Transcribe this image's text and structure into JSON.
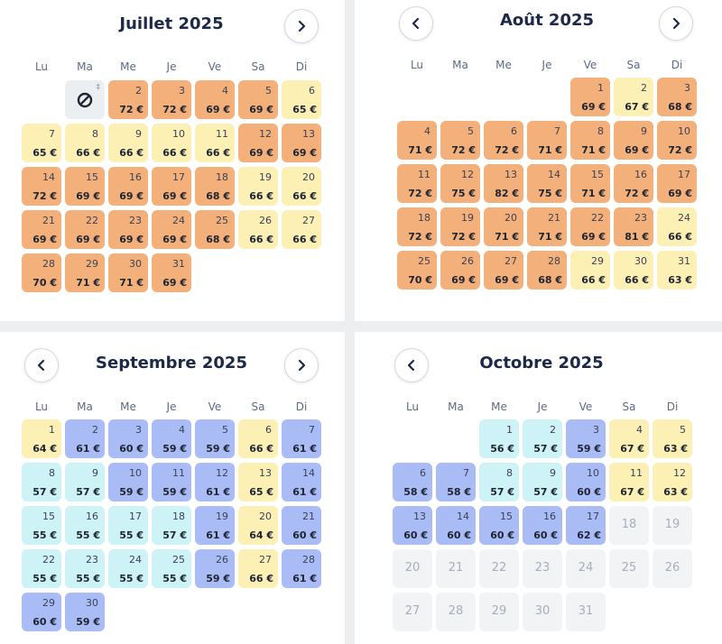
{
  "weekdays": [
    "Lu",
    "Ma",
    "Me",
    "Je",
    "Ve",
    "Sa",
    "Di"
  ],
  "colors": {
    "high": "#f3b07a",
    "mid": "#fdf0b5",
    "low": "#a9bcf6",
    "lowest": "#cdf3f7",
    "unavailable": "#f1f3f5"
  },
  "months": [
    {
      "title": "Juillet 2025",
      "nav": [
        "chevron-right-icon"
      ],
      "unavailable_mark": "‡",
      "days": [
        {
          "day": "2",
          "price": "72 €",
          "level": "high"
        },
        {
          "day": "3",
          "price": "72 €",
          "level": "high"
        },
        {
          "day": "4",
          "price": "69 €",
          "level": "high"
        },
        {
          "day": "5",
          "price": "69 €",
          "level": "high"
        },
        {
          "day": "6",
          "price": "65 €",
          "level": "mid"
        },
        {
          "day": "7",
          "price": "65 €",
          "level": "mid"
        },
        {
          "day": "8",
          "price": "66 €",
          "level": "mid"
        },
        {
          "day": "9",
          "price": "66 €",
          "level": "mid"
        },
        {
          "day": "10",
          "price": "66 €",
          "level": "mid"
        },
        {
          "day": "11",
          "price": "66 €",
          "level": "mid"
        },
        {
          "day": "12",
          "price": "69 €",
          "level": "high"
        },
        {
          "day": "13",
          "price": "69 €",
          "level": "high"
        },
        {
          "day": "14",
          "price": "72 €",
          "level": "high"
        },
        {
          "day": "15",
          "price": "69 €",
          "level": "high"
        },
        {
          "day": "16",
          "price": "69 €",
          "level": "high"
        },
        {
          "day": "17",
          "price": "69 €",
          "level": "high"
        },
        {
          "day": "18",
          "price": "68 €",
          "level": "high"
        },
        {
          "day": "19",
          "price": "66 €",
          "level": "mid"
        },
        {
          "day": "20",
          "price": "66 €",
          "level": "mid"
        },
        {
          "day": "21",
          "price": "69 €",
          "level": "high"
        },
        {
          "day": "22",
          "price": "69 €",
          "level": "high"
        },
        {
          "day": "23",
          "price": "69 €",
          "level": "high"
        },
        {
          "day": "24",
          "price": "69 €",
          "level": "high"
        },
        {
          "day": "25",
          "price": "68 €",
          "level": "high"
        },
        {
          "day": "26",
          "price": "66 €",
          "level": "mid"
        },
        {
          "day": "27",
          "price": "66 €",
          "level": "mid"
        },
        {
          "day": "28",
          "price": "70 €",
          "level": "high"
        },
        {
          "day": "29",
          "price": "71 €",
          "level": "high"
        },
        {
          "day": "30",
          "price": "71 €",
          "level": "high"
        },
        {
          "day": "31",
          "price": "69 €",
          "level": "high"
        }
      ]
    },
    {
      "title": "Août 2025",
      "nav": [
        "chevron-left-icon",
        "chevron-right-icon"
      ],
      "days": [
        {
          "day": "1",
          "price": "69 €",
          "level": "high"
        },
        {
          "day": "2",
          "price": "67 €",
          "level": "mid"
        },
        {
          "day": "3",
          "price": "68 €",
          "level": "high"
        },
        {
          "day": "4",
          "price": "71 €",
          "level": "high"
        },
        {
          "day": "5",
          "price": "72 €",
          "level": "high"
        },
        {
          "day": "6",
          "price": "72 €",
          "level": "high"
        },
        {
          "day": "7",
          "price": "71 €",
          "level": "high"
        },
        {
          "day": "8",
          "price": "71 €",
          "level": "high"
        },
        {
          "day": "9",
          "price": "69 €",
          "level": "high"
        },
        {
          "day": "10",
          "price": "72 €",
          "level": "high"
        },
        {
          "day": "11",
          "price": "72 €",
          "level": "high"
        },
        {
          "day": "12",
          "price": "75 €",
          "level": "high"
        },
        {
          "day": "13",
          "price": "82 €",
          "level": "high"
        },
        {
          "day": "14",
          "price": "75 €",
          "level": "high"
        },
        {
          "day": "15",
          "price": "71 €",
          "level": "high"
        },
        {
          "day": "16",
          "price": "72 €",
          "level": "high"
        },
        {
          "day": "17",
          "price": "69 €",
          "level": "high"
        },
        {
          "day": "18",
          "price": "72 €",
          "level": "high"
        },
        {
          "day": "19",
          "price": "72 €",
          "level": "high"
        },
        {
          "day": "20",
          "price": "71 €",
          "level": "high"
        },
        {
          "day": "21",
          "price": "71 €",
          "level": "high"
        },
        {
          "day": "22",
          "price": "69 €",
          "level": "high"
        },
        {
          "day": "23",
          "price": "81 €",
          "level": "high"
        },
        {
          "day": "24",
          "price": "66 €",
          "level": "mid"
        },
        {
          "day": "25",
          "price": "70 €",
          "level": "high"
        },
        {
          "day": "26",
          "price": "69 €",
          "level": "high"
        },
        {
          "day": "27",
          "price": "69 €",
          "level": "high"
        },
        {
          "day": "28",
          "price": "68 €",
          "level": "high"
        },
        {
          "day": "29",
          "price": "66 €",
          "level": "mid"
        },
        {
          "day": "30",
          "price": "66 €",
          "level": "mid"
        },
        {
          "day": "31",
          "price": "63 €",
          "level": "mid"
        }
      ]
    },
    {
      "title": "Septembre 2025",
      "nav": [
        "chevron-left-icon",
        "chevron-right-icon"
      ],
      "days": [
        {
          "day": "1",
          "price": "64 €",
          "level": "mid"
        },
        {
          "day": "2",
          "price": "61 €",
          "level": "low"
        },
        {
          "day": "3",
          "price": "60 €",
          "level": "low"
        },
        {
          "day": "4",
          "price": "59 €",
          "level": "low"
        },
        {
          "day": "5",
          "price": "59 €",
          "level": "low"
        },
        {
          "day": "6",
          "price": "66 €",
          "level": "mid"
        },
        {
          "day": "7",
          "price": "61 €",
          "level": "low"
        },
        {
          "day": "8",
          "price": "57 €",
          "level": "lowest"
        },
        {
          "day": "9",
          "price": "57 €",
          "level": "lowest"
        },
        {
          "day": "10",
          "price": "59 €",
          "level": "low"
        },
        {
          "day": "11",
          "price": "59 €",
          "level": "low"
        },
        {
          "day": "12",
          "price": "61 €",
          "level": "low"
        },
        {
          "day": "13",
          "price": "65 €",
          "level": "mid"
        },
        {
          "day": "14",
          "price": "61 €",
          "level": "low"
        },
        {
          "day": "15",
          "price": "55 €",
          "level": "lowest"
        },
        {
          "day": "16",
          "price": "55 €",
          "level": "lowest"
        },
        {
          "day": "17",
          "price": "55 €",
          "level": "lowest"
        },
        {
          "day": "18",
          "price": "57 €",
          "level": "lowest"
        },
        {
          "day": "19",
          "price": "61 €",
          "level": "low"
        },
        {
          "day": "20",
          "price": "64 €",
          "level": "mid"
        },
        {
          "day": "21",
          "price": "60 €",
          "level": "low"
        },
        {
          "day": "22",
          "price": "55 €",
          "level": "lowest"
        },
        {
          "day": "23",
          "price": "55 €",
          "level": "lowest"
        },
        {
          "day": "24",
          "price": "55 €",
          "level": "lowest"
        },
        {
          "day": "25",
          "price": "55 €",
          "level": "lowest"
        },
        {
          "day": "26",
          "price": "59 €",
          "level": "low"
        },
        {
          "day": "27",
          "price": "66 €",
          "level": "mid"
        },
        {
          "day": "28",
          "price": "61 €",
          "level": "low"
        },
        {
          "day": "29",
          "price": "60 €",
          "level": "low"
        },
        {
          "day": "30",
          "price": "59 €",
          "level": "low"
        }
      ]
    },
    {
      "title": "Octobre 2025",
      "nav": [
        "chevron-left-icon"
      ],
      "days": [
        {
          "day": "1",
          "price": "56 €",
          "level": "lowest"
        },
        {
          "day": "2",
          "price": "57 €",
          "level": "lowest"
        },
        {
          "day": "3",
          "price": "59 €",
          "level": "low"
        },
        {
          "day": "4",
          "price": "67 €",
          "level": "mid"
        },
        {
          "day": "5",
          "price": "63 €",
          "level": "mid"
        },
        {
          "day": "6",
          "price": "58 €",
          "level": "low"
        },
        {
          "day": "7",
          "price": "58 €",
          "level": "low"
        },
        {
          "day": "8",
          "price": "57 €",
          "level": "lowest"
        },
        {
          "day": "9",
          "price": "57 €",
          "level": "lowest"
        },
        {
          "day": "10",
          "price": "60 €",
          "level": "low"
        },
        {
          "day": "11",
          "price": "67 €",
          "level": "mid"
        },
        {
          "day": "12",
          "price": "63 €",
          "level": "mid"
        },
        {
          "day": "13",
          "price": "60 €",
          "level": "low"
        },
        {
          "day": "14",
          "price": "60 €",
          "level": "low"
        },
        {
          "day": "15",
          "price": "60 €",
          "level": "low"
        },
        {
          "day": "16",
          "price": "60 €",
          "level": "low"
        },
        {
          "day": "17",
          "price": "62 €",
          "level": "low"
        },
        {
          "day": "18",
          "price": "",
          "level": "unavailable"
        },
        {
          "day": "19",
          "price": "",
          "level": "unavailable"
        },
        {
          "day": "20",
          "price": "",
          "level": "unavailable"
        },
        {
          "day": "21",
          "price": "",
          "level": "unavailable"
        },
        {
          "day": "22",
          "price": "",
          "level": "unavailable"
        },
        {
          "day": "23",
          "price": "",
          "level": "unavailable"
        },
        {
          "day": "24",
          "price": "",
          "level": "unavailable"
        },
        {
          "day": "25",
          "price": "",
          "level": "unavailable"
        },
        {
          "day": "26",
          "price": "",
          "level": "unavailable"
        },
        {
          "day": "27",
          "price": "",
          "level": "unavailable"
        },
        {
          "day": "28",
          "price": "",
          "level": "unavailable"
        },
        {
          "day": "29",
          "price": "",
          "level": "unavailable"
        },
        {
          "day": "30",
          "price": "",
          "level": "unavailable"
        },
        {
          "day": "31",
          "price": "",
          "level": "unavailable"
        }
      ]
    }
  ]
}
